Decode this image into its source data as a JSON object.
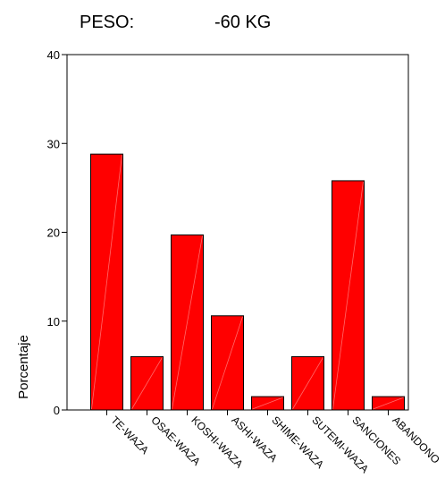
{
  "header": {
    "label": "PESO:",
    "value": "-60 KG"
  },
  "chart_data": {
    "type": "bar",
    "title": "PESO: -60 KG",
    "xlabel": "",
    "ylabel": "Porcentaje",
    "ylim": [
      0,
      40
    ],
    "yticks": [
      0,
      10,
      20,
      30,
      40
    ],
    "categories": [
      "TE-WAZA",
      "OSAE-WAZA",
      "KOSHI-WAZA",
      "ASHI-WAZA",
      "SHIME-WAZA",
      "SUTEMI-WAZA",
      "SANCIONES",
      "ABANDONO"
    ],
    "values": [
      28.8,
      6.0,
      19.7,
      10.6,
      1.5,
      6.0,
      25.8,
      1.5
    ],
    "bar_color": "#ff0000",
    "grid": false,
    "legend": "none"
  }
}
